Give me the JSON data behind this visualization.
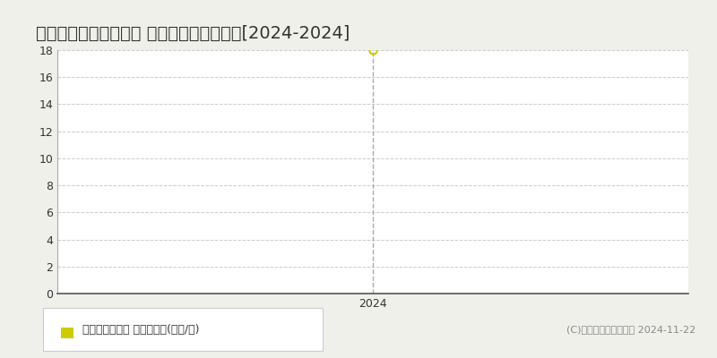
{
  "title": "北九州市若松区西園町 マンション価格推移[2024-2024]",
  "x_values": [
    2024
  ],
  "y_values": [
    18
  ],
  "x_min": 2023.5,
  "x_max": 2024.5,
  "y_min": 0,
  "y_max": 18,
  "y_ticks": [
    0,
    2,
    4,
    6,
    8,
    10,
    12,
    14,
    16,
    18
  ],
  "x_ticks": [
    2024
  ],
  "point_color": "#cccc00",
  "dashed_line_color": "#aaaaaa",
  "grid_color": "#cccccc",
  "background_color": "#f0f0eb",
  "plot_bg_color": "#ffffff",
  "legend_label": "マンション価格 平均坪単価(万円/坪)",
  "legend_color": "#cccc00",
  "copyright_text": "(C)土地価格ドットコム 2024-11-22",
  "title_fontsize": 14,
  "tick_fontsize": 9,
  "legend_fontsize": 9,
  "copyright_fontsize": 8,
  "spine_bottom_color": "#555555",
  "spine_left_color": "#aaaaaa",
  "text_color": "#333333",
  "copyright_color": "#888888"
}
